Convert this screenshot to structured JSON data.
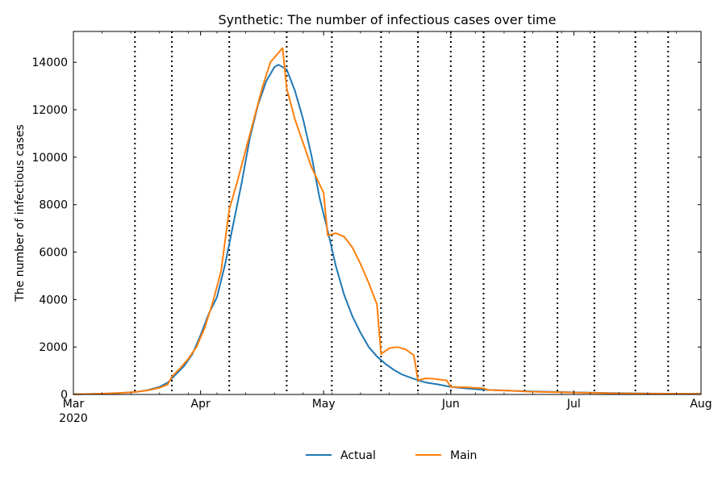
{
  "chart_data": {
    "type": "line",
    "title": "Synthetic: The number of infectious cases over time",
    "xlabel": "",
    "ylabel": "The number of infectious cases",
    "x_start": "2020-03-01",
    "x_end": "2020-08-01",
    "ylim": [
      0,
      15300
    ],
    "yticks": [
      0,
      2000,
      4000,
      6000,
      8000,
      10000,
      12000,
      14000
    ],
    "xticks": [
      {
        "date": "2020-03-01",
        "label": "Mar",
        "sublabel": "2020"
      },
      {
        "date": "2020-04-01",
        "label": "Apr"
      },
      {
        "date": "2020-05-01",
        "label": "May"
      },
      {
        "date": "2020-06-01",
        "label": "Jun"
      },
      {
        "date": "2020-07-01",
        "label": "Jul"
      },
      {
        "date": "2020-08-01",
        "label": "Aug"
      }
    ],
    "grid": false,
    "vertical_lines": [
      "2020-03-16",
      "2020-03-25",
      "2020-04-08",
      "2020-04-22",
      "2020-05-03",
      "2020-05-15",
      "2020-05-24",
      "2020-06-01",
      "2020-06-09",
      "2020-06-19",
      "2020-06-27",
      "2020-07-06",
      "2020-07-16",
      "2020-07-24"
    ],
    "legend_position": "bottom-center",
    "series": [
      {
        "name": "Actual",
        "color": "#1f77b4",
        "points": [
          [
            "2020-03-01",
            10
          ],
          [
            "2020-03-05",
            20
          ],
          [
            "2020-03-09",
            40
          ],
          [
            "2020-03-13",
            70
          ],
          [
            "2020-03-16",
            100
          ],
          [
            "2020-03-19",
            180
          ],
          [
            "2020-03-22",
            320
          ],
          [
            "2020-03-24",
            500
          ],
          [
            "2020-03-26",
            850
          ],
          [
            "2020-03-28",
            1200
          ],
          [
            "2020-03-30",
            1700
          ],
          [
            "2020-04-01",
            2500
          ],
          [
            "2020-04-03",
            3400
          ],
          [
            "2020-04-05",
            4100
          ],
          [
            "2020-04-07",
            5500
          ],
          [
            "2020-04-09",
            7200
          ],
          [
            "2020-04-11",
            8900
          ],
          [
            "2020-04-13",
            10800
          ],
          [
            "2020-04-15",
            12200
          ],
          [
            "2020-04-17",
            13200
          ],
          [
            "2020-04-19",
            13800
          ],
          [
            "2020-04-20",
            13900
          ],
          [
            "2020-04-22",
            13700
          ],
          [
            "2020-04-24",
            12800
          ],
          [
            "2020-04-26",
            11600
          ],
          [
            "2020-04-28",
            10100
          ],
          [
            "2020-04-30",
            8300
          ],
          [
            "2020-05-02",
            6900
          ],
          [
            "2020-05-04",
            5400
          ],
          [
            "2020-05-06",
            4200
          ],
          [
            "2020-05-08",
            3300
          ],
          [
            "2020-05-10",
            2600
          ],
          [
            "2020-05-12",
            2000
          ],
          [
            "2020-05-14",
            1600
          ],
          [
            "2020-05-16",
            1300
          ],
          [
            "2020-05-18",
            1050
          ],
          [
            "2020-05-20",
            850
          ],
          [
            "2020-05-22",
            720
          ],
          [
            "2020-05-24",
            600
          ],
          [
            "2020-05-26",
            500
          ],
          [
            "2020-05-29",
            420
          ],
          [
            "2020-06-01",
            320
          ],
          [
            "2020-06-05",
            250
          ],
          [
            "2020-06-09",
            200
          ],
          [
            "2020-06-15",
            160
          ],
          [
            "2020-06-20",
            130
          ],
          [
            "2020-07-01",
            90
          ],
          [
            "2020-07-10",
            60
          ],
          [
            "2020-07-20",
            40
          ],
          [
            "2020-08-01",
            30
          ]
        ]
      },
      {
        "name": "Main",
        "color": "#ff7f0e",
        "points": [
          [
            "2020-03-01",
            10
          ],
          [
            "2020-03-05",
            20
          ],
          [
            "2020-03-09",
            40
          ],
          [
            "2020-03-13",
            70
          ],
          [
            "2020-03-16",
            100
          ],
          [
            "2020-03-19",
            170
          ],
          [
            "2020-03-22",
            280
          ],
          [
            "2020-03-24",
            420
          ],
          [
            "2020-03-25",
            750
          ],
          [
            "2020-03-27",
            1100
          ],
          [
            "2020-03-29",
            1500
          ],
          [
            "2020-03-31",
            2000
          ],
          [
            "2020-04-02",
            2800
          ],
          [
            "2020-04-04",
            3900
          ],
          [
            "2020-04-06",
            5200
          ],
          [
            "2020-04-07",
            6500
          ],
          [
            "2020-04-08",
            7800
          ],
          [
            "2020-04-10",
            9000
          ],
          [
            "2020-04-12",
            10300
          ],
          [
            "2020-04-14",
            11600
          ],
          [
            "2020-04-16",
            12900
          ],
          [
            "2020-04-18",
            14000
          ],
          [
            "2020-04-21",
            14600
          ],
          [
            "2020-04-22",
            12900
          ],
          [
            "2020-04-24",
            11600
          ],
          [
            "2020-04-26",
            10600
          ],
          [
            "2020-04-28",
            9600
          ],
          [
            "2020-05-01",
            8500
          ],
          [
            "2020-05-02",
            6700
          ],
          [
            "2020-05-04",
            6800
          ],
          [
            "2020-05-06",
            6650
          ],
          [
            "2020-05-08",
            6200
          ],
          [
            "2020-05-10",
            5500
          ],
          [
            "2020-05-12",
            4700
          ],
          [
            "2020-05-14",
            3800
          ],
          [
            "2020-05-15",
            1700
          ],
          [
            "2020-05-17",
            1950
          ],
          [
            "2020-05-19",
            2000
          ],
          [
            "2020-05-21",
            1900
          ],
          [
            "2020-05-23",
            1650
          ],
          [
            "2020-05-24",
            600
          ],
          [
            "2020-05-26",
            680
          ],
          [
            "2020-05-28",
            660
          ],
          [
            "2020-05-31",
            590
          ],
          [
            "2020-06-01",
            320
          ],
          [
            "2020-06-05",
            300
          ],
          [
            "2020-06-09",
            260
          ],
          [
            "2020-06-10",
            190
          ],
          [
            "2020-06-15",
            160
          ],
          [
            "2020-06-20",
            120
          ],
          [
            "2020-07-01",
            80
          ],
          [
            "2020-07-10",
            50
          ],
          [
            "2020-07-20",
            35
          ],
          [
            "2020-08-01",
            25
          ]
        ]
      }
    ]
  }
}
